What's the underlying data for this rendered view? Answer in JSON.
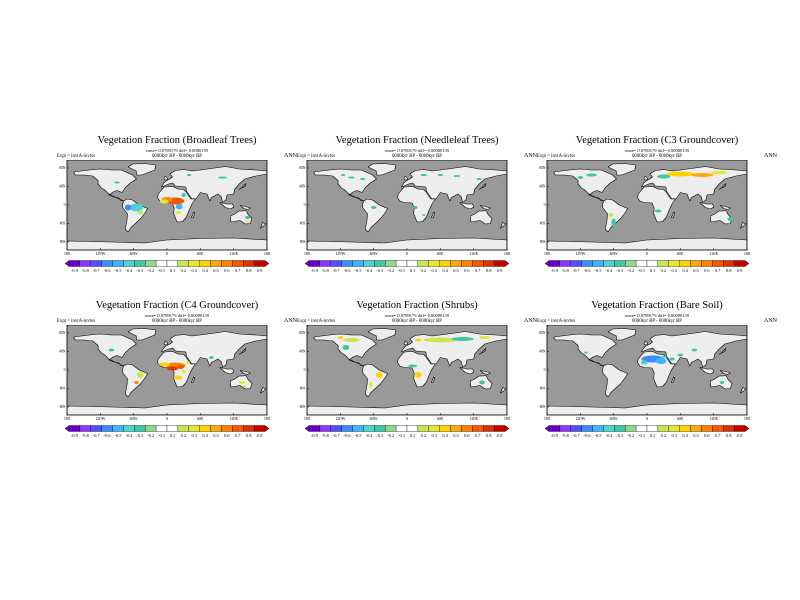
{
  "common": {
    "expt": "Expt = invtA-invtss",
    "time": "0000kyr BP - 0000kyr BP",
    "season": "ANN",
    "x_ticks": [
      "180",
      "120W",
      "60W",
      "0",
      "60E",
      "120E",
      "180"
    ],
    "y_ticks": [
      "80N",
      "40N",
      "0",
      "40S",
      "80S"
    ]
  },
  "panels": [
    {
      "title": "Vegetation Fraction (Broadleaf Trees)",
      "rmse": "rmse= 0.0789179 diff= 0.0080139",
      "colorbar_labels": [
        "-0.9",
        "-0.8",
        "-0.7",
        "-0.6",
        "-0.5",
        "-0.4",
        "-0.3",
        "-0.2",
        "-0.1",
        "0.1",
        "0.2",
        "0.3",
        "0.4",
        "0.5",
        "0.6",
        "0.7",
        "0.8",
        "0.9"
      ]
    },
    {
      "title": "Vegetation Fraction (Needleleaf Trees)",
      "rmse": "rmse= 0.0789179 diff= 0.00080139",
      "colorbar_labels": [
        "-0.9",
        "-0.8",
        "-0.7",
        "-0.6",
        "-0.5",
        "-0.4",
        "-0.3",
        "-0.2",
        "-0.1",
        "0.1",
        "0.2",
        "0.3",
        "0.4",
        "0.5",
        "0.6",
        "0.7",
        "0.8",
        "0.9"
      ]
    },
    {
      "title": "Vegetation Fraction (C3 Groundcover)",
      "rmse": "rmse= 0.0789179 diff= 0.00080139",
      "colorbar_labels": [
        "-0.9",
        "-0.8",
        "-0.7",
        "-0.6",
        "-0.5",
        "-0.4",
        "-0.3",
        "-0.2",
        "-0.1",
        "0.1",
        "0.2",
        "0.3",
        "0.4",
        "0.5",
        "0.6",
        "0.7",
        "0.8",
        "0.9"
      ]
    },
    {
      "title": "Vegetation Fraction (C4 Groundcover)",
      "rmse": "rmse= 0.0789179 diff= 0.00080139",
      "colorbar_labels": [
        "-0.9",
        "-0.8",
        "-0.7",
        "-0.6",
        "-0.5",
        "-0.4",
        "-0.3",
        "-0.2",
        "-0.1",
        "0.1",
        "0.2",
        "0.3",
        "0.4",
        "0.5",
        "0.6",
        "0.7",
        "0.8",
        "0.9"
      ]
    },
    {
      "title": "Vegetation Fraction (Shrubs)",
      "rmse": "rmse= 0.0789179 diff= 0.00080139",
      "colorbar_labels": [
        "-0.9",
        "-0.8",
        "-0.7",
        "-0.6",
        "-0.5",
        "-0.4",
        "-0.3",
        "-0.2",
        "-0.1",
        "0.1",
        "0.2",
        "0.3",
        "0.4",
        "0.5",
        "0.6",
        "0.7",
        "0.8",
        "0.9"
      ]
    },
    {
      "title": "Vegetation Fraction (Bare Soil)",
      "rmse": "rmse= 0.0789179 diff= 0.00080139",
      "colorbar_labels": [
        "-0.9",
        "-0.8",
        "-0.7",
        "-0.6",
        "-0.5",
        "-0.4",
        "-0.3",
        "-0.2",
        "-0.1",
        "0.1",
        "0.2",
        "0.3",
        "0.4",
        "0.5",
        "0.6",
        "0.7",
        "0.8",
        "0.9"
      ]
    }
  ],
  "colors": {
    "ocean": "#999999",
    "land": "#eeeeee",
    "colorbar": [
      "#6a00cc",
      "#8a3aff",
      "#5050ff",
      "#3c8cff",
      "#3cb4ff",
      "#50d2d2",
      "#3cc8a0",
      "#8cdc8c",
      "#ffffff",
      "#ffffff",
      "#c8e650",
      "#e6e632",
      "#ffd200",
      "#ffaa00",
      "#ff8200",
      "#f05a00",
      "#dc3200",
      "#c80000"
    ]
  }
}
